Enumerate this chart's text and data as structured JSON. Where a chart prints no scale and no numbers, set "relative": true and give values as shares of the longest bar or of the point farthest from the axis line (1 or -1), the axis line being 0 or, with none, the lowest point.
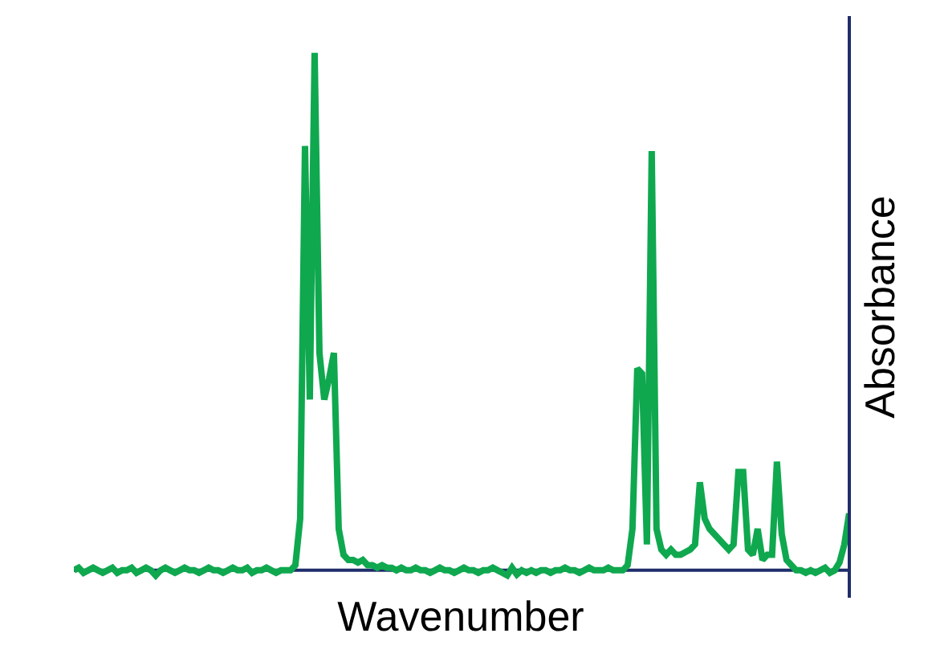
{
  "chart_data": {
    "type": "line",
    "relative": true,
    "xlabel": "Wavenumber",
    "ylabel": "Absorbance",
    "ref_lines": [
      {
        "axis": "y",
        "value": 0,
        "color": "#1f2d6b",
        "line_style": "solid"
      }
    ],
    "marker": "none",
    "line_style": "solid",
    "categories": [
      null,
      null,
      null,
      null,
      null,
      null,
      null,
      null,
      null,
      null,
      null,
      null,
      null,
      null,
      null,
      null,
      null,
      null,
      null,
      null,
      null,
      null,
      null,
      null,
      null,
      null,
      null,
      null,
      null,
      null,
      null,
      null,
      null,
      null,
      null,
      null,
      null,
      null,
      null,
      null,
      null,
      null,
      null,
      null,
      null,
      null,
      null,
      null,
      null,
      null,
      null,
      null,
      null,
      null,
      null,
      null,
      null,
      null,
      null,
      null,
      null,
      null,
      null,
      null,
      null,
      null,
      null,
      null,
      null,
      null,
      null,
      null,
      null,
      null,
      null,
      null,
      null,
      null,
      null,
      null,
      null,
      null,
      null,
      null,
      null,
      null,
      null,
      null,
      null,
      null,
      null,
      null,
      null,
      null,
      null,
      null,
      null,
      null,
      null,
      null,
      null,
      null,
      null,
      null,
      null,
      null,
      null,
      null,
      null,
      null,
      null,
      null,
      null,
      null,
      null,
      null,
      null,
      null,
      null,
      null,
      null,
      null,
      null,
      null,
      null,
      null,
      null,
      null,
      null,
      null,
      null,
      null,
      null,
      null,
      null,
      null,
      null,
      null,
      null,
      null,
      null,
      null,
      null,
      null,
      null,
      null,
      null,
      null,
      null,
      null,
      null,
      null,
      null,
      null,
      null,
      null,
      null,
      null,
      null,
      null,
      null,
      null
    ],
    "series": [
      {
        "color": "#0fa84f",
        "values": [
          0,
          0.005,
          -0.005,
          0,
          0.005,
          0,
          -0.005,
          0,
          0.005,
          -0.005,
          0,
          0,
          0.005,
          -0.005,
          0,
          0.005,
          0,
          -0.01,
          0,
          0.005,
          0,
          -0.005,
          0,
          0.005,
          0,
          0,
          -0.005,
          0,
          0.005,
          0,
          0,
          -0.005,
          0,
          0.005,
          0,
          0,
          0.005,
          -0.005,
          0,
          0,
          0.005,
          0,
          -0.005,
          0,
          0,
          0,
          0.01,
          0.1,
          0.82,
          0.33,
          1.0,
          0.42,
          0.33,
          0.37,
          0.42,
          0.08,
          0.03,
          0.02,
          0.02,
          0.015,
          0.02,
          0.01,
          0.01,
          0.005,
          0.01,
          0.005,
          0.005,
          0,
          0.005,
          0,
          0,
          0.005,
          0,
          0,
          -0.005,
          0,
          0.005,
          0,
          0,
          -0.005,
          0,
          0.005,
          0,
          0,
          -0.005,
          0,
          0,
          0.005,
          0,
          -0.005,
          -0.01,
          0.005,
          -0.008,
          0,
          -0.005,
          0,
          -0.005,
          0,
          0,
          -0.005,
          0,
          0,
          0.005,
          0,
          0,
          -0.005,
          0,
          0.005,
          0,
          0,
          0,
          0.005,
          0,
          0,
          0,
          0.01,
          0.08,
          0.39,
          0.38,
          0.05,
          0.81,
          0.08,
          0.04,
          0.03,
          0.04,
          0.03,
          0.03,
          0.035,
          0.04,
          0.05,
          0.17,
          0.1,
          0.08,
          0.07,
          0.06,
          0.05,
          0.04,
          0.05,
          0.19,
          0.19,
          0.04,
          0.03,
          0.08,
          0.02,
          0.03,
          0.03,
          0.21,
          0.07,
          0.02,
          0.01,
          0,
          0,
          -0.005,
          0,
          -0.005,
          0,
          0.005,
          -0.005,
          0,
          0.015,
          0.05,
          0.11
        ]
      }
    ]
  }
}
